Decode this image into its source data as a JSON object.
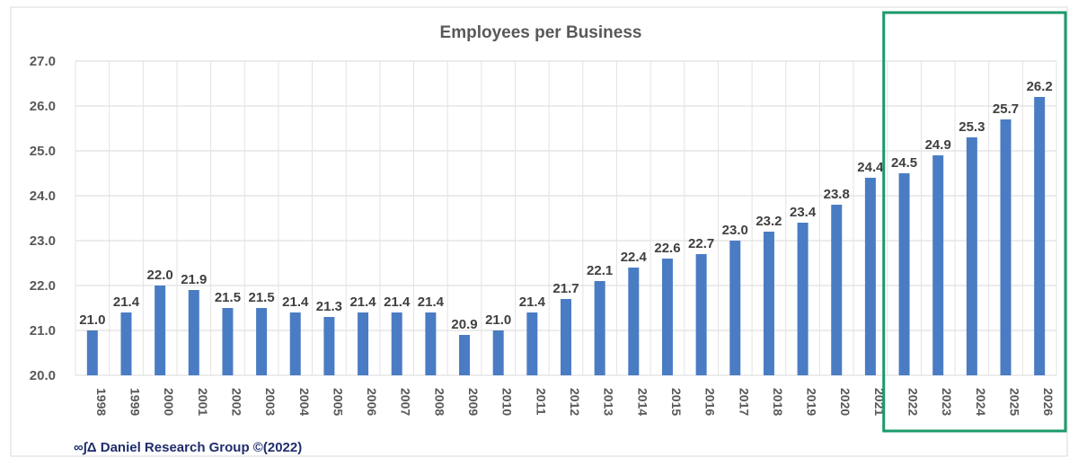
{
  "chart_data": {
    "type": "bar",
    "title": "Employees per Business",
    "categories": [
      "1998",
      "1999",
      "2000",
      "2001",
      "2002",
      "2003",
      "2004",
      "2005",
      "2006",
      "2007",
      "2008",
      "2009",
      "2010",
      "2011",
      "2012",
      "2013",
      "2014",
      "2015",
      "2016",
      "2017",
      "2018",
      "2019",
      "2020",
      "2021",
      "2022",
      "2023",
      "2024",
      "2025",
      "2026"
    ],
    "values": [
      21.0,
      21.4,
      22.0,
      21.9,
      21.5,
      21.5,
      21.4,
      21.3,
      21.4,
      21.4,
      21.4,
      20.9,
      21.0,
      21.4,
      21.7,
      22.1,
      22.4,
      22.6,
      22.7,
      23.0,
      23.2,
      23.4,
      23.8,
      24.4,
      24.5,
      24.9,
      25.3,
      25.7,
      26.2
    ],
    "value_labels": [
      "21.0",
      "21.4",
      "22.0",
      "21.9",
      "21.5",
      "21.5",
      "21.4",
      "21.3",
      "21.4",
      "21.4",
      "21.4",
      "20.9",
      "21.0",
      "21.4",
      "21.7",
      "22.1",
      "22.4",
      "22.6",
      "22.7",
      "23.0",
      "23.2",
      "23.4",
      "23.8",
      "24.4",
      "24.5",
      "24.9",
      "25.3",
      "25.7",
      "26.2"
    ],
    "ylim": [
      20.0,
      27.0
    ],
    "yticks": [
      "20.0",
      "21.0",
      "22.0",
      "23.0",
      "24.0",
      "25.0",
      "26.0",
      "27.0"
    ],
    "grid": true,
    "highlight_range": [
      "2022",
      "2026"
    ],
    "bar_color": "#4a7cc4",
    "highlight_color": "#1a9a6a"
  },
  "credit": "∞∫Δ Daniel Research Group ©(2022)"
}
